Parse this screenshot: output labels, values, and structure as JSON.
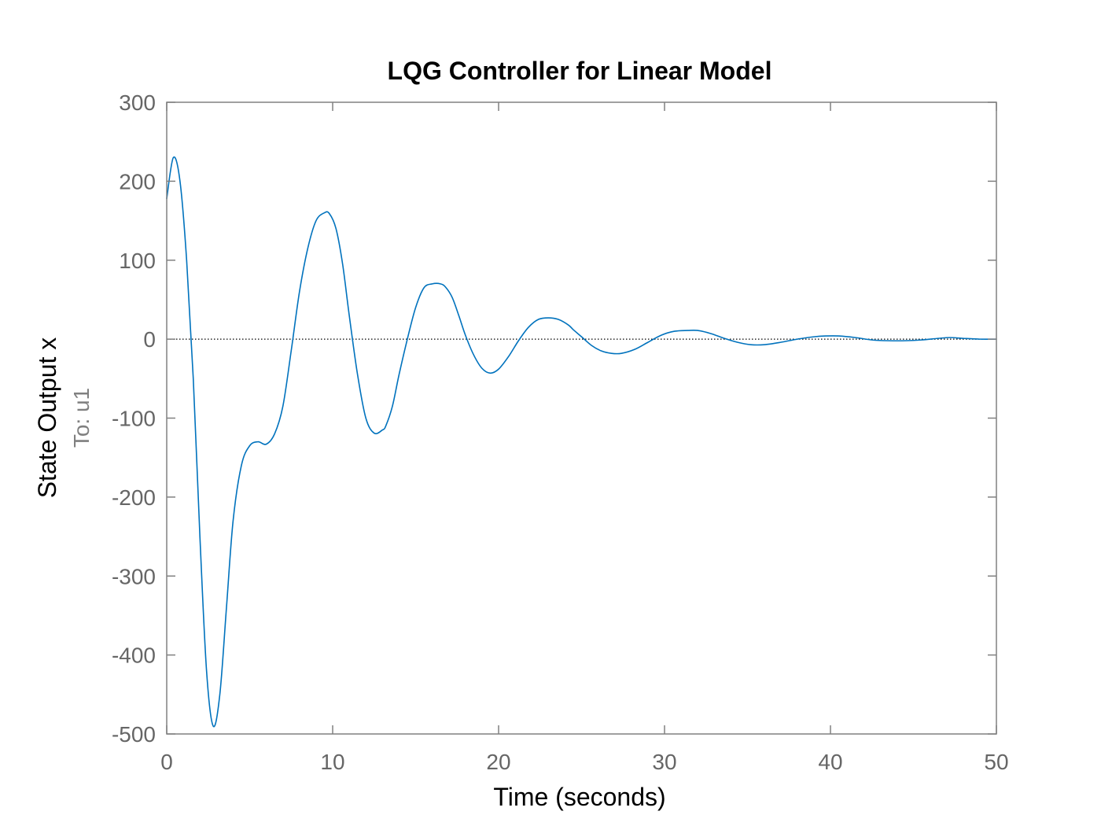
{
  "chart_data": {
    "type": "line",
    "title": "LQG Controller for Linear Model",
    "xlabel": "Time (seconds)",
    "ylabel": "State Output x",
    "ylabel_sub": "To: u1",
    "xlim": [
      0,
      50
    ],
    "ylim": [
      -500,
      300
    ],
    "xticks": [
      0,
      10,
      20,
      30,
      40,
      50
    ],
    "yticks": [
      -500,
      -400,
      -300,
      -200,
      -100,
      0,
      100,
      200,
      300
    ],
    "xtick_labels": [
      "0",
      "10",
      "20",
      "30",
      "40",
      "50"
    ],
    "ytick_labels": [
      "-500",
      "-400",
      "-300",
      "-200",
      "-100",
      "0",
      "100",
      "200",
      "300"
    ],
    "grid": false,
    "reference_line": {
      "y": 0,
      "style": "dotted",
      "color": "#000000"
    },
    "series": [
      {
        "color": "#0072BD",
        "x": [
          0,
          0.4,
          0.8,
          1.2,
          1.6,
          2.0,
          2.4,
          2.8,
          3.2,
          3.6,
          4.0,
          4.5,
          5.0,
          5.5,
          6.0,
          6.5,
          7.0,
          7.5,
          8.0,
          8.5,
          9.0,
          9.5,
          9.8,
          10.2,
          10.6,
          11.0,
          11.5,
          12.0,
          12.5,
          13.0,
          13.2,
          13.6,
          14.0,
          14.5,
          15.0,
          15.5,
          16.0,
          16.5,
          16.8,
          17.2,
          17.6,
          18.0,
          18.5,
          19.0,
          19.5,
          20.0,
          20.6,
          21.2,
          21.8,
          22.4,
          23.0,
          23.6,
          24.2,
          24.5,
          25.0,
          25.6,
          26.2,
          26.8,
          27.4,
          28.2,
          29.0,
          29.8,
          30.6,
          31.4,
          32.0,
          32.8,
          33.6,
          34.4,
          35.2,
          36.0,
          37.0,
          38.0,
          39.0,
          39.7,
          40.5,
          41.5,
          42.5,
          43.5,
          44.5,
          45.5,
          46.5,
          47.2,
          48.0,
          49.0,
          50.0
        ],
        "values": [
          178,
          230,
          200,
          100,
          -50,
          -250,
          -420,
          -490,
          -450,
          -340,
          -230,
          -160,
          -135,
          -130,
          -133,
          -120,
          -85,
          -15,
          60,
          115,
          150,
          160,
          159,
          140,
          95,
          30,
          -45,
          -100,
          -119,
          -115,
          -110,
          -85,
          -45,
          0,
          40,
          65,
          70,
          70,
          66,
          53,
          30,
          5,
          -20,
          -37,
          -43,
          -38,
          -22,
          -2,
          15,
          25,
          27,
          25,
          18,
          12,
          3,
          -8,
          -15,
          -18,
          -18,
          -13,
          -4,
          5,
          10,
          11,
          11,
          7,
          1,
          -4,
          -7,
          -7,
          -4,
          0,
          3,
          4,
          4,
          2,
          -1,
          -2,
          -2,
          -1,
          1,
          2,
          1,
          0,
          0
        ]
      }
    ]
  }
}
